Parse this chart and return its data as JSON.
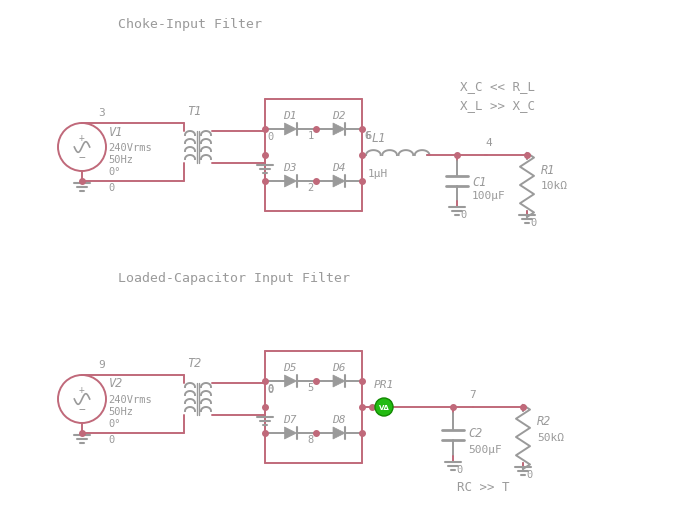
{
  "bg_color": "#ffffff",
  "wire_color": "#c0697a",
  "component_color": "#9a9a9a",
  "text_color": "#9a9a9a",
  "node_color": "#c0697a",
  "title1": "Choke-Input Filter",
  "title2": "Loaded-Capacitor Input Filter",
  "annotation1": "X_C << R_L\nX_L >> X_C",
  "annotation2": "RC >> T"
}
